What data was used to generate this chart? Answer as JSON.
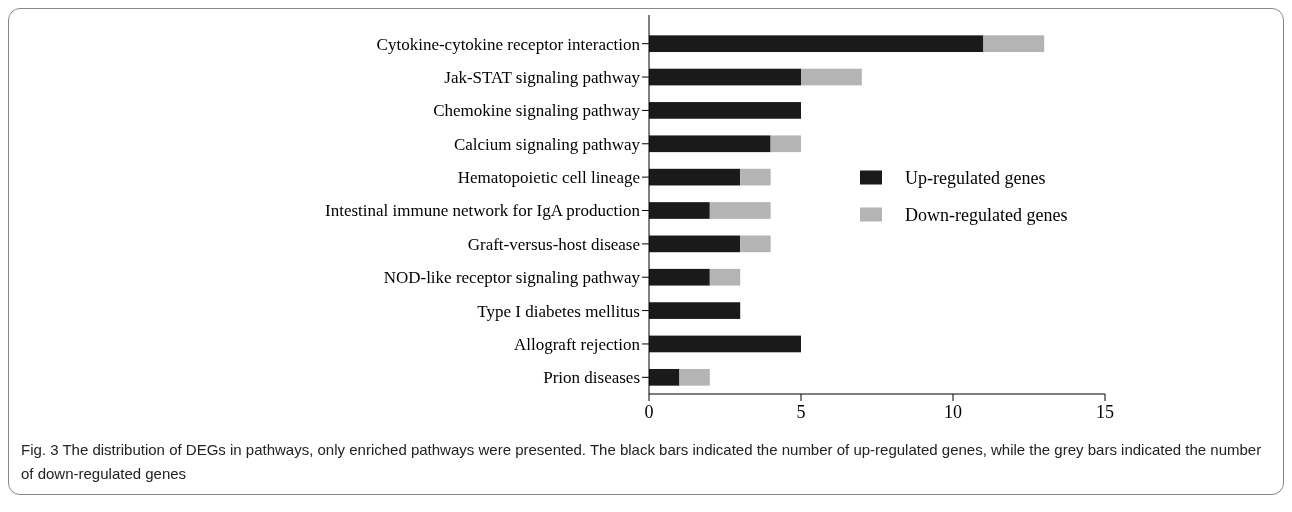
{
  "chart_data": {
    "type": "bar",
    "orientation": "horizontal",
    "stacked": true,
    "categories": [
      "Cytokine-cytokine receptor interaction",
      "Jak-STAT signaling pathway",
      "Chemokine signaling pathway",
      "Calcium signaling pathway",
      "Hematopoietic cell lineage",
      "Intestinal immune network for IgA production",
      "Graft-versus-host disease",
      "NOD-like receptor signaling pathway",
      "Type I diabetes mellitus",
      "Allograft rejection",
      "Prion diseases"
    ],
    "series": [
      {
        "name": "Up-regulated genes",
        "color": "#1a1a1a",
        "values": [
          11,
          5,
          5,
          4,
          3,
          2,
          3,
          2,
          3,
          5,
          1
        ]
      },
      {
        "name": "Down-regulated genes",
        "color": "#b4b4b4",
        "values": [
          2,
          2,
          0,
          1,
          1,
          2,
          1,
          1,
          0,
          0,
          1
        ]
      }
    ],
    "xlim": [
      0,
      15
    ],
    "xticks": [
      0,
      5,
      10,
      15
    ],
    "legend": "right",
    "grid": false,
    "annotations": [
      "Fig. 3 The distribution of DEGs in pathways, only enriched pathways were presented. The black bars indicated the number of up-regulated genes, while the grey bars indicated the number of down-regulated genes"
    ]
  }
}
